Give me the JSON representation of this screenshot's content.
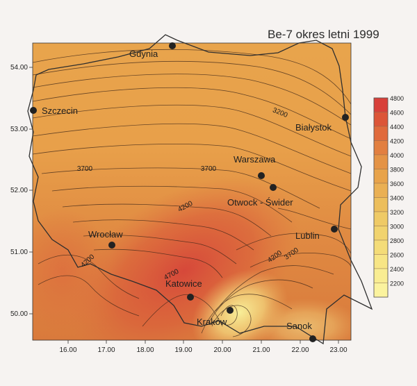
{
  "title": "Be-7 okres letni 1999",
  "x_ticks": [
    "16.00",
    "17.00",
    "18.00",
    "19.00",
    "20.00",
    "21.00",
    "22.00",
    "23.00"
  ],
  "y_ticks": [
    "54.00",
    "53.00",
    "52.00",
    "51.00",
    "50.00"
  ],
  "cities": [
    {
      "name": "Gdynia"
    },
    {
      "name": "Szczecin"
    },
    {
      "name": "Białystok"
    },
    {
      "name": "Warszawa"
    },
    {
      "name": "Otwock - Świder"
    },
    {
      "name": "Wrocław"
    },
    {
      "name": "Lublin"
    },
    {
      "name": "Katowice"
    },
    {
      "name": "Kraków"
    },
    {
      "name": "Sanok"
    }
  ],
  "contour_labels": [
    "3200",
    "3700",
    "3700",
    "4200",
    "4200",
    "4200",
    "3700",
    "4700"
  ],
  "legend": {
    "values": [
      "4800",
      "4600",
      "4400",
      "4200",
      "4000",
      "3800",
      "3600",
      "3400",
      "3200",
      "3000",
      "2800",
      "2600",
      "2400",
      "2200"
    ],
    "colors": [
      "#d8403a",
      "#dc5538",
      "#e06a3c",
      "#e27f40",
      "#e49345",
      "#e8a34a",
      "#eab054",
      "#ecbe5c",
      "#efca66",
      "#f1d36e",
      "#f4dc78",
      "#f7e585",
      "#f9ed92",
      "#fbf39e"
    ]
  }
}
